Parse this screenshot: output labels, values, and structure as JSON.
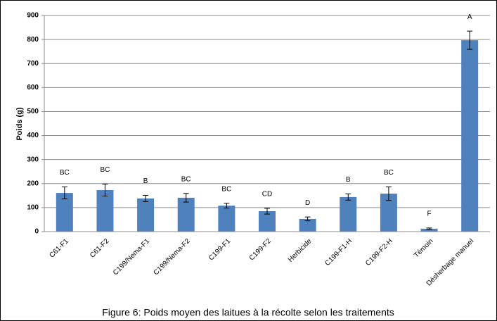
{
  "chart_data": {
    "type": "bar",
    "caption": "Figure 6: Poids moyen des laitues à la récolte selon les traitements",
    "y_label": "Poids (g)",
    "categories": [
      "C61-F1",
      "C61-F2",
      "C199/Nema-F1",
      "C199/Nema-F2",
      "C199-F1",
      "C199-F2",
      "Herbicide",
      "C199-F1-H",
      "C199-F2-H",
      "Témoin",
      "Désherbage manuel"
    ],
    "values": [
      161,
      173,
      138,
      141,
      108,
      85,
      53,
      144,
      158,
      12,
      797
    ],
    "errors": [
      25,
      25,
      13,
      18,
      10,
      12,
      8,
      13,
      28,
      3,
      38
    ],
    "letters": [
      "BC",
      "BC",
      "B",
      "BC",
      "BC",
      "CD",
      "D",
      "B",
      "BC",
      "F",
      "A"
    ],
    "color": "#4f81bd",
    "ylim": [
      0,
      900
    ],
    "yticks": [
      0,
      100,
      200,
      300,
      400,
      500,
      600,
      700,
      800,
      900
    ],
    "grid": true
  }
}
